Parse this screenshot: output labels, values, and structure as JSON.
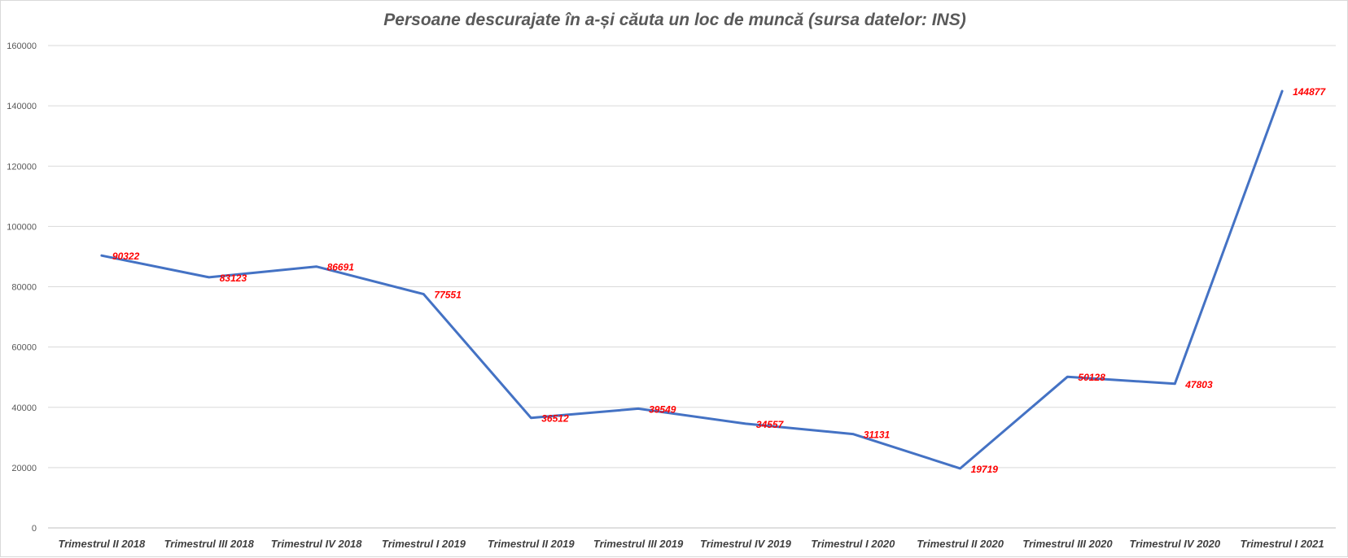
{
  "chart_data": {
    "type": "line",
    "title": "Persoane descurajate în a-și căuta un loc de muncă (sursa datelor: INS)",
    "xlabel": "",
    "ylabel": "",
    "categories": [
      "Trimestrul II 2018",
      "Trimestrul III 2018",
      "Trimestrul IV 2018",
      "Trimestrul I 2019",
      "Trimestrul II 2019",
      "Trimestrul III 2019",
      "Trimestrul IV 2019",
      "Trimestrul I 2020",
      "Trimestrul II 2020",
      "Trimestrul III 2020",
      "Trimestrul IV 2020",
      "Trimestrul I 2021"
    ],
    "series": [
      {
        "values": [
          90322,
          83123,
          86691,
          77551,
          36512,
          39549,
          34557,
          31131,
          19719,
          50128,
          47803,
          144877
        ],
        "color": "#4472c4"
      }
    ],
    "ylim": [
      0,
      160000
    ],
    "yticks": [
      0,
      20000,
      40000,
      60000,
      80000,
      100000,
      120000,
      140000,
      160000
    ],
    "grid": true,
    "legend": "none",
    "data_label_color": "#ff0000"
  }
}
